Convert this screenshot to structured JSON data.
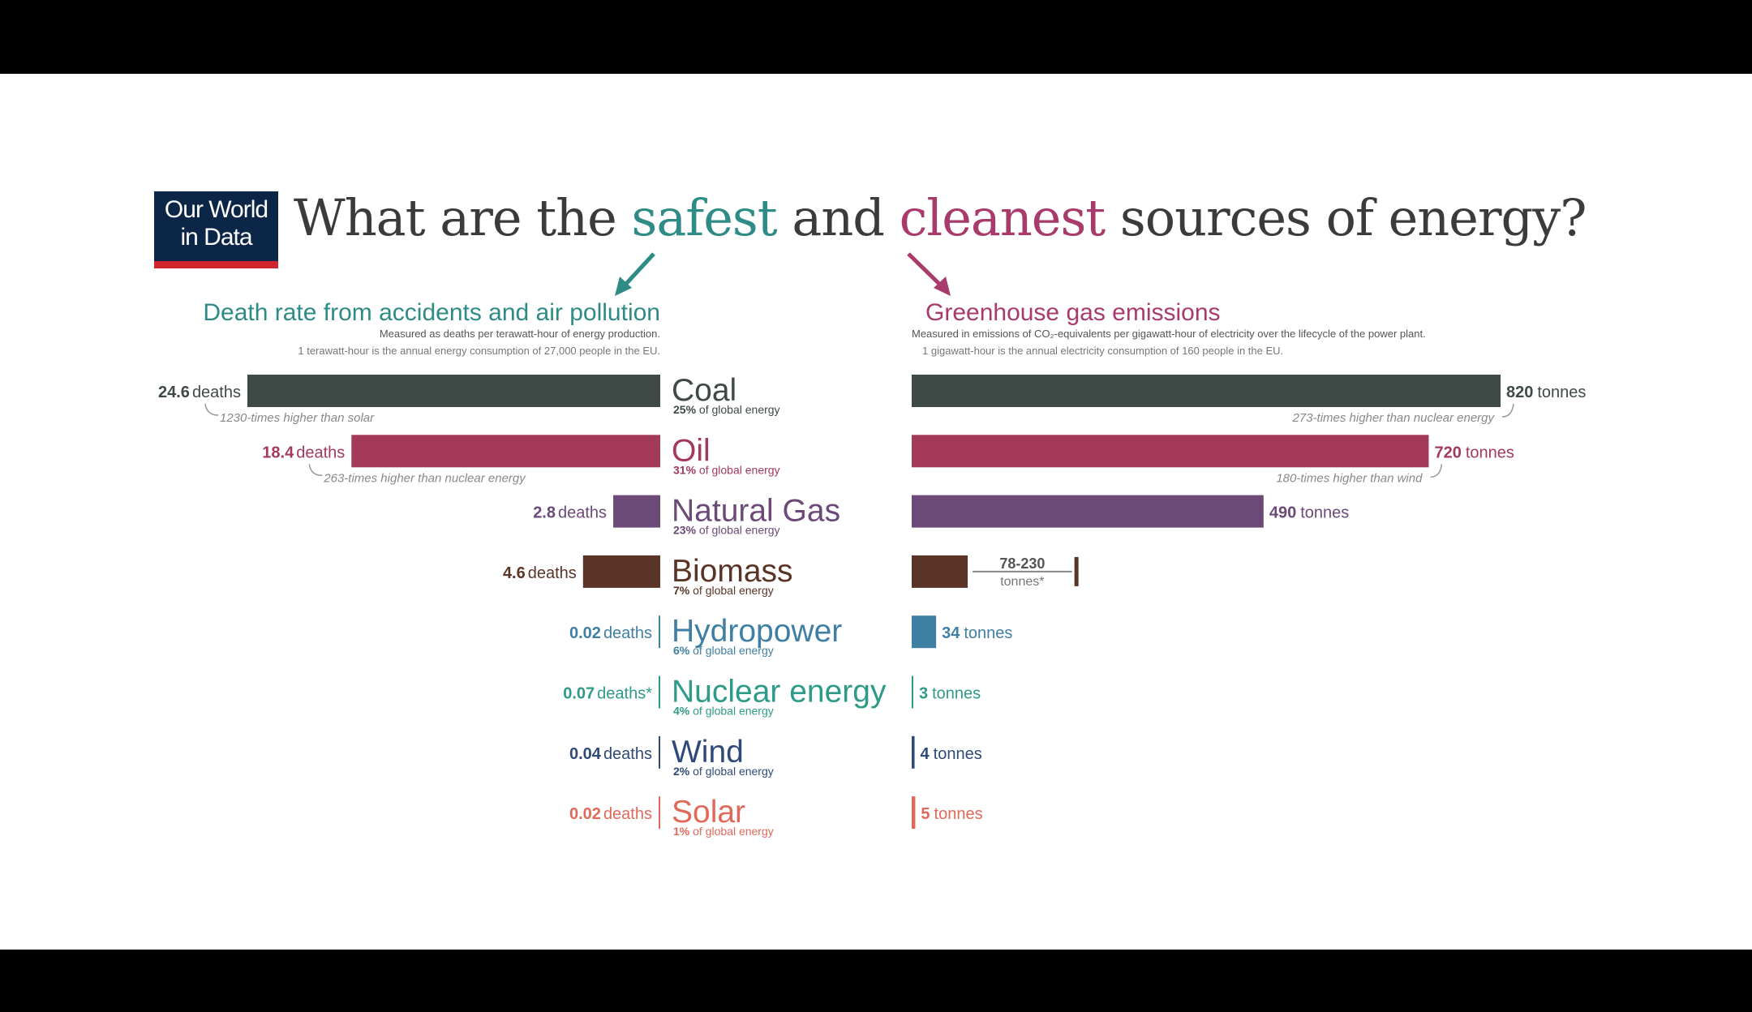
{
  "brand": {
    "line1": "Our World",
    "line2": "in Data"
  },
  "title": {
    "part1": "What are the ",
    "safe_word": "safest",
    "part2": " and ",
    "clean_word": "cleanest",
    "part3": " sources of energy?"
  },
  "colors": {
    "safe_accent": "#2e8b85",
    "clean_accent": "#a83a6c",
    "title_text": "#3b3b3b",
    "logo_bg": "#0b2646",
    "logo_bar": "#d1252e"
  },
  "chart_data": [
    {
      "type": "bar",
      "title": "Death rate from accidents and air pollution",
      "subtitle": "Measured as deaths per terawatt-hour of energy production.",
      "note": "1 terawatt-hour is the annual energy consumption of 27,000 people in the EU.",
      "unit": "deaths",
      "orientation": "horizontal-left",
      "categories": [
        "Coal",
        "Oil",
        "Natural Gas",
        "Biomass",
        "Hydropower",
        "Nuclear energy",
        "Wind",
        "Solar"
      ],
      "values": [
        24.6,
        18.4,
        2.8,
        4.6,
        0.02,
        0.07,
        0.04,
        0.02
      ],
      "value_labels": [
        "24.6",
        "18.4",
        "2.8",
        "4.6",
        "0.02",
        "0.07",
        "0.04",
        "0.02"
      ],
      "unit_labels": [
        "deaths",
        "deaths",
        "deaths",
        "deaths",
        "deaths",
        "deaths*",
        "deaths",
        "deaths"
      ],
      "annotations": [
        {
          "category": "Coal",
          "text": "1230-times higher than solar"
        },
        {
          "category": "Oil",
          "text": "263-times higher than nuclear energy"
        }
      ],
      "xlim": [
        0,
        24.6
      ]
    },
    {
      "type": "bar",
      "title": "Greenhouse gas emissions",
      "subtitle": "Measured in emissions of CO₂-equivalents per gigawatt-hour of electricity over the lifecycle of the power plant.",
      "note": "1 gigawatt-hour is the annual electricity consumption of 160 people in the EU.",
      "unit": "tonnes",
      "orientation": "horizontal-right",
      "categories": [
        "Coal",
        "Oil",
        "Natural Gas",
        "Biomass",
        "Hydropower",
        "Nuclear energy",
        "Wind",
        "Solar"
      ],
      "values": [
        820,
        720,
        490,
        78,
        34,
        3,
        4,
        5
      ],
      "value_labels": [
        "820",
        "720",
        "490",
        "78-230",
        "34",
        "3",
        "4",
        "5"
      ],
      "biomass_range": [
        78,
        230
      ],
      "biomass_unit_label": "tonnes*",
      "annotations": [
        {
          "category": "Coal",
          "text": "273-times higher than nuclear energy"
        },
        {
          "category": "Oil",
          "text": "180-times higher than wind"
        }
      ],
      "xlim": [
        0,
        820
      ]
    }
  ],
  "sources": [
    {
      "name": "Coal",
      "share": "25%",
      "share_suffix": "of global energy",
      "color": "#3f4a47"
    },
    {
      "name": "Oil",
      "share": "31%",
      "share_suffix": "of global energy",
      "color": "#a33a5a"
    },
    {
      "name": "Natural Gas",
      "share": "23%",
      "share_suffix": "of global energy",
      "color": "#6c4a78"
    },
    {
      "name": "Biomass",
      "share": "7%",
      "share_suffix": "of global energy",
      "color": "#5a3527"
    },
    {
      "name": "Hydropower",
      "share": "6%",
      "share_suffix": "of global energy",
      "color": "#3f7fa3"
    },
    {
      "name": "Nuclear energy",
      "share": "4%",
      "share_suffix": "of global energy",
      "color": "#2e9b88"
    },
    {
      "name": "Wind",
      "share": "2%",
      "share_suffix": "of global energy",
      "color": "#2f4a78"
    },
    {
      "name": "Solar",
      "share": "1%",
      "share_suffix": "of global energy",
      "color": "#e06a5a"
    }
  ]
}
